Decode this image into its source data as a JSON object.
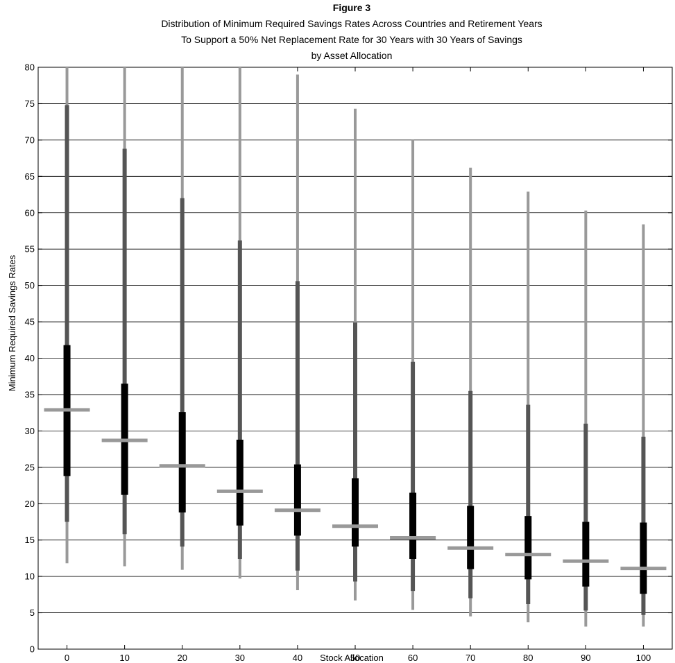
{
  "chart_data": {
    "type": "box",
    "title": "Figure 3",
    "subtitle_lines": [
      "Distribution of Minimum Required Savings Rates Across Countries and Retirement Years",
      "To Support a 50% Net Replacement Rate for 30 Years with 30 Years of Savings",
      "by Asset Allocation"
    ],
    "xlabel": "Stock Allocation",
    "ylabel": "Minimum Required Savings Rates",
    "categories": [
      "0",
      "10",
      "20",
      "30",
      "40",
      "50",
      "60",
      "70",
      "80",
      "90",
      "100"
    ],
    "ylim": [
      0,
      80
    ],
    "yticks": [
      "0",
      "5",
      "10",
      "15",
      "20",
      "25",
      "30",
      "35",
      "40",
      "45",
      "50",
      "55",
      "60",
      "65",
      "70",
      "75",
      "80"
    ],
    "grid": true,
    "colors": {
      "outer": "#999999",
      "middle": "#555555",
      "inner": "#000000",
      "median": "#999999",
      "grid": "#000000"
    },
    "series": [
      {
        "x": "0",
        "min": 11.8,
        "p_low": 17.5,
        "q1": 23.8,
        "median": 32.9,
        "q3": 41.8,
        "p_high": 74.8,
        "max": 80
      },
      {
        "x": "10",
        "min": 11.4,
        "p_low": 15.8,
        "q1": 21.2,
        "median": 28.7,
        "q3": 36.5,
        "p_high": 68.8,
        "max": 80
      },
      {
        "x": "20",
        "min": 10.9,
        "p_low": 14.1,
        "q1": 18.8,
        "median": 25.2,
        "q3": 32.6,
        "p_high": 62.0,
        "max": 80
      },
      {
        "x": "30",
        "min": 9.7,
        "p_low": 12.4,
        "q1": 17.0,
        "median": 21.7,
        "q3": 28.8,
        "p_high": 56.2,
        "max": 80
      },
      {
        "x": "40",
        "min": 8.1,
        "p_low": 10.8,
        "q1": 15.6,
        "median": 19.1,
        "q3": 25.4,
        "p_high": 50.6,
        "max": 79.0
      },
      {
        "x": "50",
        "min": 6.7,
        "p_low": 9.3,
        "q1": 14.1,
        "median": 16.9,
        "q3": 23.5,
        "p_high": 44.9,
        "max": 74.3
      },
      {
        "x": "60",
        "min": 5.4,
        "p_low": 8.0,
        "q1": 12.4,
        "median": 15.3,
        "q3": 21.5,
        "p_high": 39.5,
        "max": 70.0
      },
      {
        "x": "70",
        "min": 4.5,
        "p_low": 7.0,
        "q1": 11.0,
        "median": 13.9,
        "q3": 19.7,
        "p_high": 35.5,
        "max": 66.2
      },
      {
        "x": "80",
        "min": 3.7,
        "p_low": 6.2,
        "q1": 9.6,
        "median": 13.0,
        "q3": 18.3,
        "p_high": 33.6,
        "max": 62.9
      },
      {
        "x": "90",
        "min": 3.1,
        "p_low": 5.3,
        "q1": 8.6,
        "median": 12.1,
        "q3": 17.5,
        "p_high": 31.0,
        "max": 60.3
      },
      {
        "x": "100",
        "min": 3.1,
        "p_low": 4.7,
        "q1": 7.6,
        "median": 11.1,
        "q3": 17.4,
        "p_high": 29.2,
        "max": 58.4
      }
    ]
  }
}
